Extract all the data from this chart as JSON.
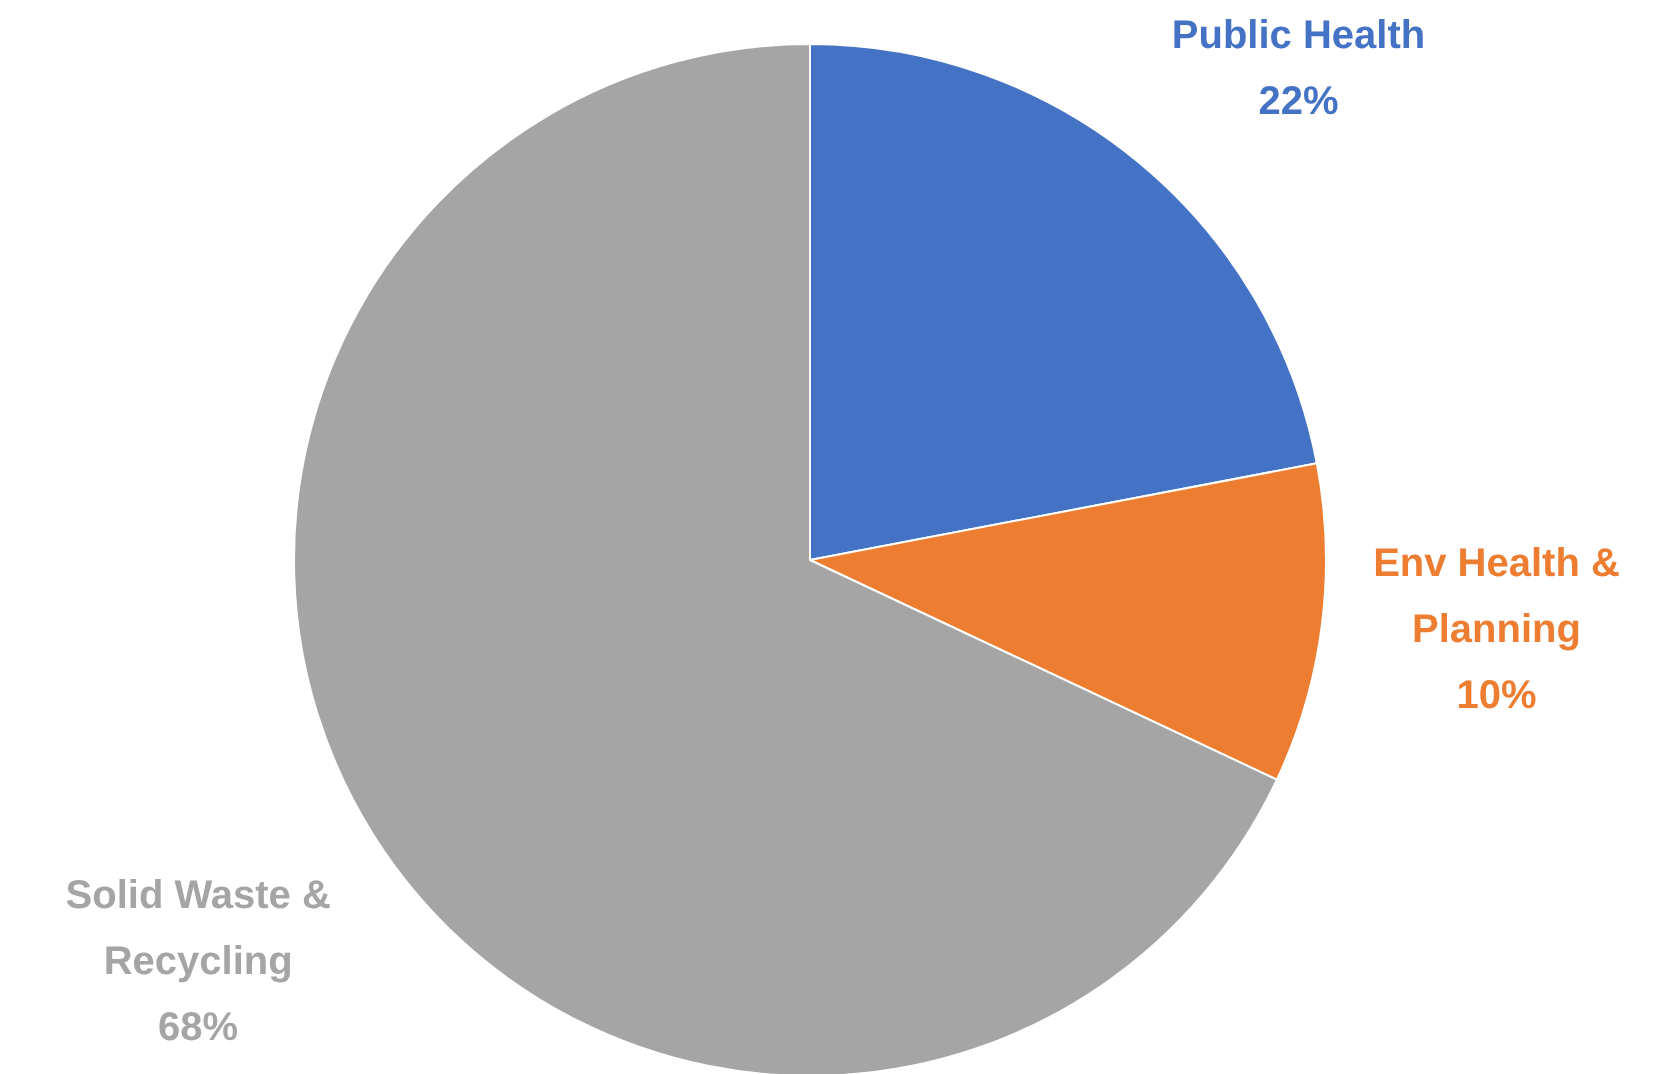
{
  "chart_data": {
    "type": "pie",
    "categories": [
      "Public Health",
      "Env Health & Planning",
      "Solid Waste & Recycling"
    ],
    "values": [
      22,
      10,
      68
    ],
    "colors": [
      "#4472c4",
      "#ed7d31",
      "#a5a5a5"
    ],
    "value_labels": [
      "22%",
      "10%",
      "68%"
    ],
    "legend": false
  }
}
